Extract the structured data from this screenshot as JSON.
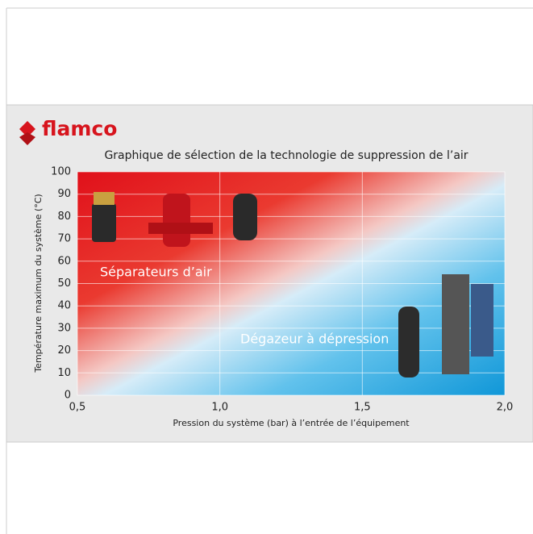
{
  "brand": "flamco",
  "chart_data": {
    "type": "region",
    "title": "Graphique de sélection de la technologie de suppression de l’air",
    "x_label": "Pression du système (bar) à l’entrée de l’équipement",
    "y_label": "Température maximum du système (°C)",
    "xlim": [
      0.5,
      2.0
    ],
    "xticks": [
      {
        "value": 0.5,
        "label": "0,5"
      },
      {
        "value": 1.0,
        "label": "1,0"
      },
      {
        "value": 1.5,
        "label": "1,5"
      },
      {
        "value": 2.0,
        "label": "2,0"
      }
    ],
    "ylim": [
      0,
      100
    ],
    "yticks": [
      0,
      10,
      20,
      30,
      40,
      50,
      60,
      70,
      80,
      90,
      100
    ],
    "grid": true,
    "annotations": [
      {
        "text": "Séparateurs d’air"
      },
      {
        "text": "Dégazeur à dépression"
      }
    ]
  }
}
